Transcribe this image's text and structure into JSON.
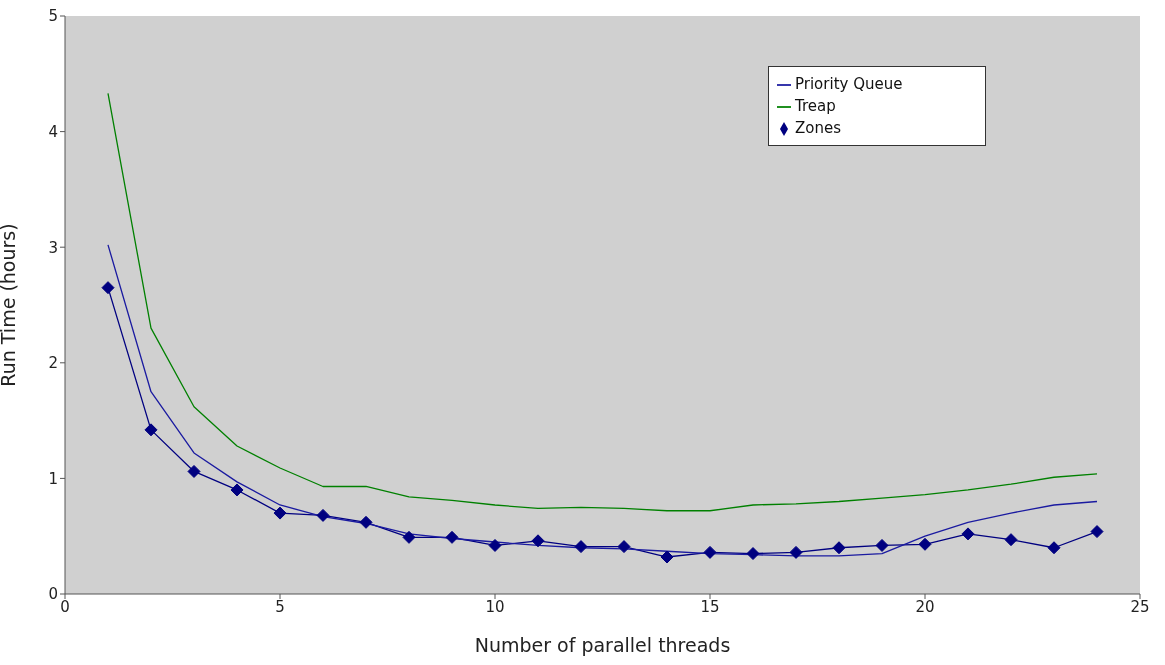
{
  "chart_data": {
    "type": "line",
    "xlabel": "Number of parallel threads",
    "ylabel": "Run Time (hours)",
    "x": [
      1,
      2,
      3,
      4,
      5,
      6,
      7,
      8,
      9,
      10,
      11,
      12,
      13,
      14,
      15,
      16,
      17,
      18,
      19,
      20,
      21,
      22,
      23,
      24
    ],
    "series": [
      {
        "name": "Zones",
        "color": "#000080",
        "marker": "diamond",
        "values": [
          2.65,
          1.42,
          1.06,
          0.9,
          0.7,
          0.68,
          0.62,
          0.49,
          0.49,
          0.42,
          0.46,
          0.41,
          0.41,
          0.32,
          0.36,
          0.35,
          0.36,
          0.4,
          0.42,
          0.43,
          0.52,
          0.47,
          0.4,
          0.54
        ]
      },
      {
        "name": "Priority Queue",
        "color": "#1a1aa0",
        "marker": "none",
        "values": [
          3.02,
          1.75,
          1.22,
          0.97,
          0.77,
          0.67,
          0.61,
          0.52,
          0.48,
          0.45,
          0.42,
          0.4,
          0.39,
          0.37,
          0.35,
          0.34,
          0.33,
          0.33,
          0.35,
          0.5,
          0.62,
          0.7,
          0.77,
          0.8
        ]
      },
      {
        "name": "Treap",
        "color": "#008000",
        "marker": "none",
        "values": [
          4.33,
          2.3,
          1.62,
          1.28,
          1.09,
          0.93,
          0.93,
          0.84,
          0.81,
          0.77,
          0.74,
          0.75,
          0.74,
          0.72,
          0.72,
          0.77,
          0.78,
          0.8,
          0.83,
          0.86,
          0.9,
          0.95,
          1.01,
          1.04
        ]
      }
    ],
    "xlim": [
      0,
      25
    ],
    "xticks": [
      0,
      5,
      10,
      15,
      20,
      25
    ],
    "ylim": [
      0,
      5
    ],
    "yticks": [
      0,
      1,
      2,
      3,
      4,
      5
    ],
    "grid": false,
    "legend": "top right"
  }
}
